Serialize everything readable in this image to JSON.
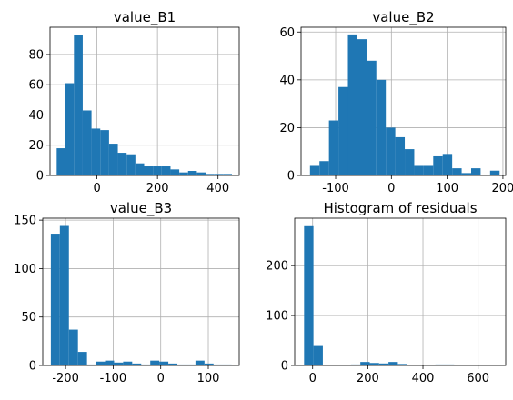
{
  "chart_data": [
    {
      "type": "histogram",
      "title": "value_B1",
      "xlabel": "",
      "ylabel": "",
      "grid": true,
      "bar_color": "#1f77b4",
      "xlim": [
        -155,
        470
      ],
      "ylim": [
        0,
        98
      ],
      "xticks": [
        0,
        200,
        400
      ],
      "yticks": [
        0,
        20,
        40,
        60,
        80
      ],
      "bins": [
        {
          "x0": -133,
          "x1": -104,
          "count": 18
        },
        {
          "x0": -104,
          "x1": -76,
          "count": 61
        },
        {
          "x0": -76,
          "x1": -47,
          "count": 93
        },
        {
          "x0": -47,
          "x1": -18,
          "count": 43
        },
        {
          "x0": -18,
          "x1": 11,
          "count": 31
        },
        {
          "x0": 11,
          "x1": 40,
          "count": 30
        },
        {
          "x0": 40,
          "x1": 69,
          "count": 21
        },
        {
          "x0": 69,
          "x1": 98,
          "count": 15
        },
        {
          "x0": 98,
          "x1": 127,
          "count": 14
        },
        {
          "x0": 127,
          "x1": 156,
          "count": 8
        },
        {
          "x0": 156,
          "x1": 185,
          "count": 6
        },
        {
          "x0": 185,
          "x1": 214,
          "count": 6
        },
        {
          "x0": 214,
          "x1": 243,
          "count": 6
        },
        {
          "x0": 243,
          "x1": 272,
          "count": 4
        },
        {
          "x0": 272,
          "x1": 301,
          "count": 2
        },
        {
          "x0": 301,
          "x1": 330,
          "count": 3
        },
        {
          "x0": 330,
          "x1": 359,
          "count": 2
        },
        {
          "x0": 359,
          "x1": 388,
          "count": 1
        },
        {
          "x0": 388,
          "x1": 417,
          "count": 1
        },
        {
          "x0": 417,
          "x1": 446,
          "count": 1
        }
      ]
    },
    {
      "type": "histogram",
      "title": "value_B2",
      "xlabel": "",
      "ylabel": "",
      "grid": true,
      "bar_color": "#1f77b4",
      "xlim": [
        -162,
        205
      ],
      "ylim": [
        0,
        62
      ],
      "xticks": [
        -100,
        0,
        100,
        200
      ],
      "yticks": [
        0,
        20,
        40,
        60
      ],
      "bins": [
        {
          "x0": -146,
          "x1": -129,
          "count": 4
        },
        {
          "x0": -129,
          "x1": -112,
          "count": 6
        },
        {
          "x0": -112,
          "x1": -95,
          "count": 23
        },
        {
          "x0": -95,
          "x1": -78,
          "count": 37
        },
        {
          "x0": -78,
          "x1": -61,
          "count": 59
        },
        {
          "x0": -61,
          "x1": -44,
          "count": 57
        },
        {
          "x0": -44,
          "x1": -27,
          "count": 48
        },
        {
          "x0": -27,
          "x1": -10,
          "count": 40
        },
        {
          "x0": -10,
          "x1": 7,
          "count": 20
        },
        {
          "x0": 7,
          "x1": 24,
          "count": 16
        },
        {
          "x0": 24,
          "x1": 41,
          "count": 11
        },
        {
          "x0": 41,
          "x1": 58,
          "count": 4
        },
        {
          "x0": 58,
          "x1": 75,
          "count": 4
        },
        {
          "x0": 75,
          "x1": 92,
          "count": 8
        },
        {
          "x0": 92,
          "x1": 109,
          "count": 9
        },
        {
          "x0": 109,
          "x1": 126,
          "count": 3
        },
        {
          "x0": 126,
          "x1": 143,
          "count": 1
        },
        {
          "x0": 143,
          "x1": 160,
          "count": 3
        },
        {
          "x0": 160,
          "x1": 177,
          "count": 0
        },
        {
          "x0": 177,
          "x1": 194,
          "count": 2
        }
      ]
    },
    {
      "type": "histogram",
      "title": "value_B3",
      "xlabel": "",
      "ylabel": "",
      "grid": true,
      "bar_color": "#1f77b4",
      "xlim": [
        -248,
        165
      ],
      "ylim": [
        0,
        152
      ],
      "xticks": [
        -200,
        -100,
        0,
        100
      ],
      "yticks": [
        0,
        50,
        100,
        150
      ],
      "bins": [
        {
          "x0": -231,
          "x1": -212,
          "count": 136
        },
        {
          "x0": -212,
          "x1": -193,
          "count": 144
        },
        {
          "x0": -193,
          "x1": -174,
          "count": 37
        },
        {
          "x0": -174,
          "x1": -155,
          "count": 14
        },
        {
          "x0": -155,
          "x1": -136,
          "count": 1
        },
        {
          "x0": -136,
          "x1": -117,
          "count": 4
        },
        {
          "x0": -117,
          "x1": -98,
          "count": 5
        },
        {
          "x0": -98,
          "x1": -79,
          "count": 3
        },
        {
          "x0": -79,
          "x1": -60,
          "count": 4
        },
        {
          "x0": -60,
          "x1": -41,
          "count": 2
        },
        {
          "x0": -41,
          "x1": -22,
          "count": 1
        },
        {
          "x0": -22,
          "x1": -3,
          "count": 5
        },
        {
          "x0": -3,
          "x1": 16,
          "count": 4
        },
        {
          "x0": 16,
          "x1": 35,
          "count": 2
        },
        {
          "x0": 35,
          "x1": 54,
          "count": 1
        },
        {
          "x0": 54,
          "x1": 73,
          "count": 1
        },
        {
          "x0": 73,
          "x1": 92,
          "count": 5
        },
        {
          "x0": 92,
          "x1": 111,
          "count": 2
        },
        {
          "x0": 111,
          "x1": 130,
          "count": 1
        },
        {
          "x0": 130,
          "x1": 149,
          "count": 1
        }
      ]
    },
    {
      "type": "histogram",
      "title": "Histogram of residuals",
      "xlabel": "",
      "ylabel": "",
      "grid": true,
      "bar_color": "#1f77b4",
      "xlim": [
        -65,
        700
      ],
      "ylim": [
        0,
        295
      ],
      "xticks": [
        0,
        200,
        400,
        600
      ],
      "yticks": [
        0,
        100,
        200
      ],
      "bins": [
        {
          "x0": -31,
          "x1": 3,
          "count": 279
        },
        {
          "x0": 3,
          "x1": 37,
          "count": 39
        },
        {
          "x0": 37,
          "x1": 71,
          "count": 1
        },
        {
          "x0": 71,
          "x1": 105,
          "count": 1
        },
        {
          "x0": 105,
          "x1": 139,
          "count": 1
        },
        {
          "x0": 139,
          "x1": 173,
          "count": 2
        },
        {
          "x0": 173,
          "x1": 207,
          "count": 7
        },
        {
          "x0": 207,
          "x1": 241,
          "count": 5
        },
        {
          "x0": 241,
          "x1": 275,
          "count": 4
        },
        {
          "x0": 275,
          "x1": 309,
          "count": 7
        },
        {
          "x0": 309,
          "x1": 343,
          "count": 3
        },
        {
          "x0": 343,
          "x1": 377,
          "count": 1
        },
        {
          "x0": 377,
          "x1": 411,
          "count": 1
        },
        {
          "x0": 411,
          "x1": 445,
          "count": 1
        },
        {
          "x0": 445,
          "x1": 479,
          "count": 2
        },
        {
          "x0": 479,
          "x1": 513,
          "count": 2
        },
        {
          "x0": 513,
          "x1": 547,
          "count": 1
        },
        {
          "x0": 547,
          "x1": 581,
          "count": 0
        },
        {
          "x0": 581,
          "x1": 615,
          "count": 0
        },
        {
          "x0": 615,
          "x1": 649,
          "count": 1
        }
      ]
    }
  ]
}
